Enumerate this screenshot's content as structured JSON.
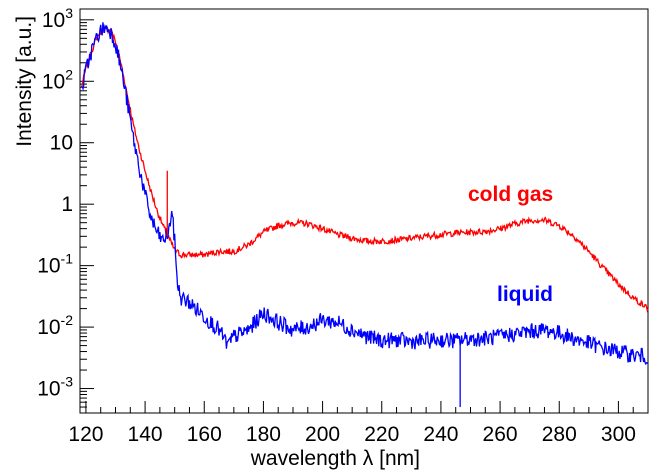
{
  "chart_data": {
    "type": "line",
    "title": "",
    "xlabel": "wavelength λ [nm]",
    "ylabel": "Intensity [a.u.]",
    "xlim": [
      118,
      310
    ],
    "ylim": [
      0.0004,
      1500
    ],
    "y_scale": "log",
    "grid": false,
    "x_ticks": [
      120,
      140,
      160,
      180,
      200,
      220,
      240,
      260,
      280,
      300
    ],
    "x_tick_labels": [
      "120",
      "140",
      "160",
      "180",
      "200",
      "220",
      "240",
      "260",
      "280",
      "300"
    ],
    "y_ticks": [
      0.001,
      0.01,
      0.1,
      1,
      10,
      100,
      1000
    ],
    "y_tick_labels": [
      {
        "base": "10",
        "exp": "-3"
      },
      {
        "base": "10",
        "exp": "-2"
      },
      {
        "base": "10",
        "exp": "-1"
      },
      {
        "base": "1",
        "exp": ""
      },
      {
        "base": "10",
        "exp": ""
      },
      {
        "base": "10",
        "exp": "2"
      },
      {
        "base": "10",
        "exp": "3"
      }
    ],
    "series": [
      {
        "name": "cold gas",
        "color": "#ff0000",
        "x": [
          118.5,
          120,
          122,
          124,
          126,
          128,
          130,
          132,
          134,
          136,
          138,
          140,
          142,
          144,
          146,
          148,
          150,
          152,
          155,
          160,
          165,
          170,
          175,
          180,
          185,
          190,
          195,
          200,
          205,
          210,
          215,
          220,
          225,
          230,
          235,
          240,
          245,
          250,
          255,
          260,
          265,
          270,
          275,
          280,
          285,
          290,
          295,
          300,
          305,
          310
        ],
        "y": [
          80,
          160,
          320,
          550,
          720,
          700,
          450,
          180,
          60,
          20,
          8,
          3.5,
          1.6,
          0.8,
          0.45,
          0.28,
          0.18,
          0.15,
          0.15,
          0.15,
          0.17,
          0.17,
          0.22,
          0.35,
          0.45,
          0.5,
          0.48,
          0.4,
          0.32,
          0.28,
          0.25,
          0.25,
          0.26,
          0.28,
          0.3,
          0.32,
          0.34,
          0.35,
          0.36,
          0.4,
          0.48,
          0.55,
          0.55,
          0.45,
          0.3,
          0.17,
          0.09,
          0.05,
          0.03,
          0.02
        ]
      },
      {
        "name": "liquid",
        "color": "#0000ff",
        "x": [
          118.5,
          120,
          122,
          124,
          126,
          128,
          130,
          132,
          134,
          136,
          138,
          140,
          142,
          144,
          146,
          148,
          149,
          150,
          151,
          152,
          155,
          160,
          165,
          168,
          170,
          175,
          180,
          185,
          190,
          195,
          200,
          205,
          210,
          215,
          220,
          225,
          230,
          235,
          240,
          245,
          250,
          255,
          260,
          265,
          270,
          275,
          280,
          285,
          290,
          295,
          300,
          305,
          310
        ],
        "y": [
          70,
          150,
          320,
          560,
          750,
          700,
          420,
          150,
          45,
          12,
          4,
          1.4,
          0.6,
          0.35,
          0.25,
          0.35,
          0.8,
          0.25,
          0.05,
          0.03,
          0.025,
          0.015,
          0.009,
          0.005,
          0.007,
          0.009,
          0.017,
          0.012,
          0.009,
          0.01,
          0.013,
          0.012,
          0.009,
          0.007,
          0.006,
          0.0062,
          0.0058,
          0.006,
          0.0062,
          0.006,
          0.0065,
          0.0065,
          0.007,
          0.0078,
          0.0085,
          0.009,
          0.008,
          0.0065,
          0.0055,
          0.0045,
          0.004,
          0.0035,
          0.0033
        ]
      }
    ],
    "annotations": [
      {
        "text": "cold gas",
        "series": "cold gas"
      },
      {
        "text": "liquid",
        "series": "liquid"
      }
    ],
    "features": [
      {
        "series": "cold gas",
        "x": 147.5,
        "y_from": 0.3,
        "y_to": 3.5
      },
      {
        "series": "liquid",
        "x": 246.5,
        "y_from": 0.006,
        "y_to": 0.0005
      }
    ]
  }
}
